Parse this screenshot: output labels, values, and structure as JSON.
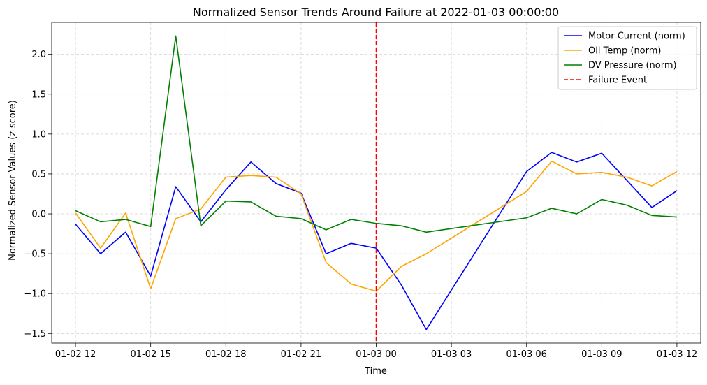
{
  "chart_data": {
    "type": "line",
    "title": "Normalized Sensor Trends Around Failure at 2022-01-03 00:00:00",
    "xlabel": "Time",
    "ylabel": "Normalized Sensor Values (z-score)",
    "x": [
      "01-02 12:00",
      "01-02 13:00",
      "01-02 14:00",
      "01-02 15:00",
      "01-02 16:00",
      "01-02 17:00",
      "01-02 18:00",
      "01-02 19:00",
      "01-02 20:00",
      "01-02 21:00",
      "01-02 22:00",
      "01-02 23:00",
      "01-03 00:00",
      "01-03 01:00",
      "01-03 02:00",
      "01-03 06:00",
      "01-03 07:00",
      "01-03 08:00",
      "01-03 09:00",
      "01-03 10:00",
      "01-03 11:00",
      "01-03 12:00"
    ],
    "x_hours": [
      0,
      1,
      2,
      3,
      4,
      5,
      6,
      7,
      8,
      9,
      10,
      11,
      12,
      13,
      14,
      18,
      19,
      20,
      21,
      22,
      23,
      24
    ],
    "xticks": [
      {
        "hour": 0,
        "label": "01-02 12"
      },
      {
        "hour": 3,
        "label": "01-02 15"
      },
      {
        "hour": 6,
        "label": "01-02 18"
      },
      {
        "hour": 9,
        "label": "01-02 21"
      },
      {
        "hour": 12,
        "label": "01-03 00"
      },
      {
        "hour": 15,
        "label": "01-03 03"
      },
      {
        "hour": 18,
        "label": "01-03 06"
      },
      {
        "hour": 21,
        "label": "01-03 09"
      },
      {
        "hour": 24,
        "label": "01-03 12"
      }
    ],
    "xlim": [
      -0.95,
      24.95
    ],
    "ylim": [
      -1.62,
      2.4
    ],
    "yticks": [
      {
        "value": -1.5,
        "label": "−1.5"
      },
      {
        "value": -1.0,
        "label": "−1.0"
      },
      {
        "value": -0.5,
        "label": "−0.5"
      },
      {
        "value": 0.0,
        "label": "0.0"
      },
      {
        "value": 0.5,
        "label": "0.5"
      },
      {
        "value": 1.0,
        "label": "1.0"
      },
      {
        "value": 1.5,
        "label": "1.5"
      },
      {
        "value": 2.0,
        "label": "2.0"
      }
    ],
    "grid": true,
    "legend_position": "top-right",
    "series": [
      {
        "name": "Motor Current (norm)",
        "color": "#0000ff",
        "values": [
          -0.13,
          -0.5,
          -0.23,
          -0.78,
          0.34,
          -0.1,
          0.3,
          0.65,
          0.38,
          0.26,
          -0.5,
          -0.37,
          -0.43,
          -0.89,
          -1.45,
          0.53,
          0.77,
          0.65,
          0.76,
          0.42,
          0.08,
          0.29
        ]
      },
      {
        "name": "Oil Temp (norm)",
        "color": "#ffa500",
        "values": [
          0.01,
          -0.43,
          0.01,
          -0.94,
          -0.06,
          0.06,
          0.46,
          0.48,
          0.46,
          0.25,
          -0.61,
          -0.88,
          -0.97,
          -0.66,
          -0.5,
          0.28,
          0.66,
          0.5,
          0.52,
          0.46,
          0.35,
          0.53
        ]
      },
      {
        "name": "DV Pressure (norm)",
        "color": "#008000",
        "values": [
          0.04,
          -0.1,
          -0.07,
          -0.16,
          2.23,
          -0.15,
          0.16,
          0.15,
          -0.03,
          -0.06,
          -0.2,
          -0.07,
          -0.12,
          -0.15,
          -0.23,
          -0.05,
          0.07,
          0.0,
          0.18,
          0.11,
          -0.02,
          -0.04
        ]
      }
    ],
    "event_line": {
      "name": "Failure Event",
      "hour": 12,
      "color": "#ff0000",
      "style": "dashed"
    }
  }
}
